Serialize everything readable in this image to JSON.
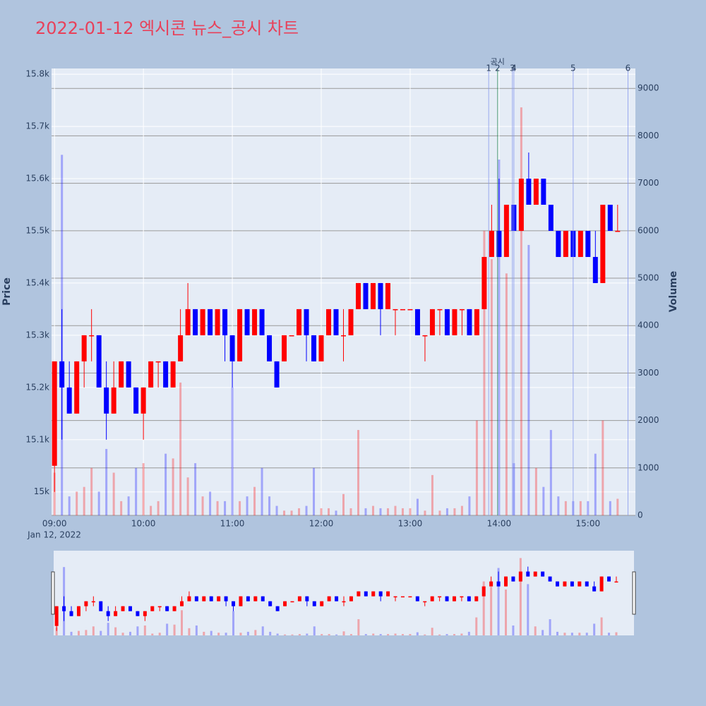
{
  "chart_data": {
    "type": "candlestick",
    "title": "2022-01-12 엑시콘 뉴스_공시 차트",
    "ylabel": "Price",
    "y2label": "Volume",
    "x_date_label": "Jan 12, 2022",
    "increasing_color": "#ff0000",
    "decreasing_color": "#0000ff",
    "x": [
      "09:00",
      "09:05",
      "09:10",
      "09:15",
      "09:20",
      "09:25",
      "09:30",
      "09:35",
      "09:40",
      "09:45",
      "09:50",
      "09:55",
      "10:00",
      "10:05",
      "10:10",
      "10:15",
      "10:20",
      "10:25",
      "10:30",
      "10:35",
      "10:40",
      "10:45",
      "10:50",
      "10:55",
      "11:00",
      "11:05",
      "11:10",
      "11:15",
      "11:20",
      "11:25",
      "11:30",
      "11:35",
      "11:40",
      "11:45",
      "11:50",
      "11:55",
      "12:00",
      "12:05",
      "12:10",
      "12:15",
      "12:20",
      "12:25",
      "12:30",
      "12:35",
      "12:40",
      "12:45",
      "12:50",
      "12:55",
      "13:00",
      "13:05",
      "13:10",
      "13:15",
      "13:20",
      "13:25",
      "13:30",
      "13:35",
      "13:40",
      "13:45",
      "13:50",
      "13:55",
      "14:00",
      "14:05",
      "14:10",
      "14:15",
      "14:20",
      "14:25",
      "14:30",
      "14:35",
      "14:40",
      "14:45",
      "14:50",
      "14:55",
      "15:00",
      "15:05",
      "15:10",
      "15:15",
      "15:20"
    ],
    "open": [
      15050,
      15250,
      15200,
      15150,
      15250,
      15300,
      15300,
      15200,
      15150,
      15200,
      15250,
      15200,
      15150,
      15200,
      15250,
      15250,
      15200,
      15250,
      15300,
      15350,
      15300,
      15350,
      15300,
      15350,
      15300,
      15250,
      15350,
      15300,
      15350,
      15300,
      15250,
      15250,
      15300,
      15300,
      15350,
      15300,
      15250,
      15300,
      15350,
      15300,
      15300,
      15350,
      15400,
      15350,
      15400,
      15350,
      15350,
      15350,
      15350,
      15350,
      15300,
      15300,
      15350,
      15350,
      15300,
      15350,
      15350,
      15300,
      15350,
      15450,
      15500,
      15450,
      15550,
      15500,
      15600,
      15550,
      15600,
      15550,
      15500,
      15450,
      15500,
      15450,
      15500,
      15450,
      15400,
      15550,
      15500
    ],
    "high": [
      15250,
      15350,
      15250,
      15250,
      15300,
      15350,
      15300,
      15250,
      15250,
      15250,
      15250,
      15200,
      15200,
      15250,
      15250,
      15250,
      15250,
      15350,
      15400,
      15350,
      15350,
      15350,
      15350,
      15350,
      15300,
      15350,
      15350,
      15350,
      15350,
      15300,
      15250,
      15300,
      15300,
      15350,
      15350,
      15300,
      15300,
      15350,
      15350,
      15350,
      15350,
      15400,
      15400,
      15400,
      15400,
      15400,
      15350,
      15350,
      15350,
      15350,
      15300,
      15350,
      15350,
      15350,
      15350,
      15350,
      15350,
      15350,
      15450,
      15550,
      15600,
      15550,
      15550,
      15600,
      15650,
      15600,
      15600,
      15550,
      15500,
      15500,
      15500,
      15500,
      15500,
      15500,
      15550,
      15550,
      15550
    ],
    "low": [
      15000,
      15100,
      15150,
      15150,
      15200,
      15250,
      15200,
      15100,
      15150,
      15200,
      15200,
      15150,
      15100,
      15200,
      15200,
      15200,
      15200,
      15250,
      15300,
      15300,
      15300,
      15300,
      15300,
      15250,
      15200,
      15250,
      15300,
      15300,
      15300,
      15250,
      15200,
      15250,
      15300,
      15300,
      15250,
      15250,
      15250,
      15300,
      15300,
      15250,
      15300,
      15350,
      15350,
      15350,
      15300,
      15350,
      15300,
      15350,
      15350,
      15300,
      15250,
      15300,
      15300,
      15300,
      15300,
      15300,
      15300,
      15300,
      15350,
      15450,
      15450,
      15450,
      15500,
      15500,
      15550,
      15550,
      15550,
      15500,
      15450,
      15450,
      15450,
      15450,
      15450,
      15400,
      15400,
      15500,
      15500
    ],
    "close": [
      15250,
      15200,
      15150,
      15250,
      15300,
      15300,
      15200,
      15150,
      15200,
      15250,
      15200,
      15150,
      15200,
      15250,
      15250,
      15200,
      15250,
      15300,
      15350,
      15300,
      15350,
      15300,
      15350,
      15300,
      15250,
      15350,
      15300,
      15350,
      15300,
      15250,
      15200,
      15300,
      15300,
      15350,
      15300,
      15250,
      15300,
      15350,
      15300,
      15300,
      15350,
      15400,
      15350,
      15400,
      15350,
      15400,
      15350,
      15350,
      15350,
      15300,
      15300,
      15350,
      15350,
      15300,
      15350,
      15350,
      15300,
      15350,
      15450,
      15500,
      15450,
      15550,
      15500,
      15600,
      15550,
      15600,
      15550,
      15500,
      15450,
      15500,
      15450,
      15500,
      15450,
      15400,
      15550,
      15500,
      15500
    ],
    "volume": [
      900,
      7600,
      400,
      500,
      600,
      1000,
      500,
      1400,
      900,
      300,
      400,
      1000,
      1100,
      200,
      300,
      1300,
      1200,
      2800,
      800,
      1100,
      400,
      500,
      300,
      300,
      2700,
      300,
      400,
      600,
      1000,
      400,
      200,
      100,
      100,
      150,
      200,
      1000,
      150,
      150,
      100,
      450,
      150,
      1800,
      150,
      200,
      150,
      150,
      200,
      150,
      150,
      350,
      100,
      850,
      100,
      150,
      150,
      200,
      400,
      2000,
      6000,
      5400,
      7500,
      5100,
      1100,
      8600,
      5700,
      1000,
      600,
      1800,
      400,
      300,
      300,
      300,
      300,
      1300,
      2000,
      300,
      350
    ],
    "events": [
      {
        "x": "13:53",
        "label": "1"
      },
      {
        "x": "13:59",
        "label": "2",
        "annotation": "공시"
      },
      {
        "x": "14:09",
        "label": "3"
      },
      {
        "x": "14:10",
        "label": "4"
      },
      {
        "x": "14:50",
        "label": "5"
      },
      {
        "x": "15:27",
        "label": "6"
      }
    ],
    "xlim": [
      "08:58",
      "15:32"
    ],
    "xticks": [
      "09:00",
      "10:00",
      "11:00",
      "12:00",
      "13:00",
      "14:00",
      "15:00"
    ],
    "ylim": [
      14955,
      15811
    ],
    "yticks": [
      {
        "value": 15000,
        "label": "15k"
      },
      {
        "value": 15100,
        "label": "15.1k"
      },
      {
        "value": 15200,
        "label": "15.2k"
      },
      {
        "value": 15300,
        "label": "15.3k"
      },
      {
        "value": 15400,
        "label": "15.4k"
      },
      {
        "value": 15500,
        "label": "15.5k"
      },
      {
        "value": 15600,
        "label": "15.6k"
      },
      {
        "value": 15700,
        "label": "15.7k"
      },
      {
        "value": 15800,
        "label": "15.8k"
      }
    ],
    "y2lim": [
      0,
      9420
    ],
    "y2ticks": [
      0,
      1000,
      2000,
      3000,
      4000,
      5000,
      6000,
      7000,
      8000,
      9000
    ]
  }
}
